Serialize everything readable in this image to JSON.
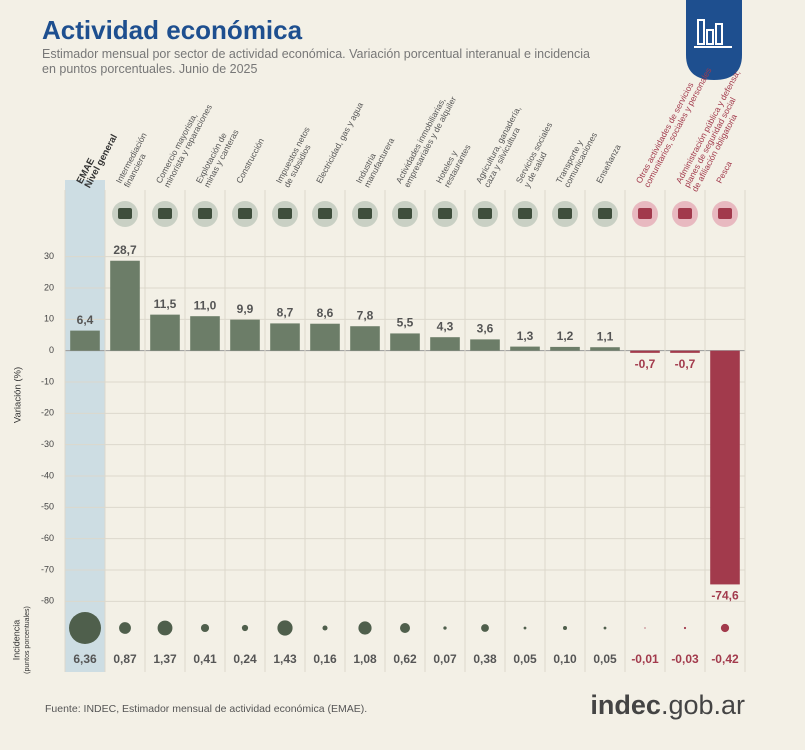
{
  "title": "Actividad económica",
  "subtitle": "Estimador mensual por sector de actividad económica. Variación porcentual interanual e incidencia\nen puntos porcentuales. Junio de 2025",
  "source": "Fuente: INDEC, Estimador mensual de actividad económica (EMAE).",
  "logo": {
    "name": "indec",
    "domain": ".gob.ar"
  },
  "chart_data": {
    "type": "bar",
    "categories": [
      "EMAE\nNivel general",
      "Intermediación\nfinanciera",
      "Comercio mayorista,\nminorista y reparaciones",
      "Explotación de\nminas y canteras",
      "Construcción",
      "Impuestos netos\nde subsidios",
      "Electricidad, gas y agua",
      "Industria\nmanufacturera",
      "Actividades inmobiliarias,\nempresariales y de alquiler",
      "Hoteles y\nrestaurantes",
      "Agricultura, ganadería,\ncaza y silvicultura",
      "Servicios sociales\ny de salud",
      "Transporte y\ncomunicaciones",
      "Enseñanza",
      "Otras actividades de servicios\ncomunitarios, sociales y personales",
      "Administración pública y defensa;\nplanes de seguridad social\nde afiliación obligatoria",
      "Pesca"
    ],
    "values": [
      6.4,
      28.7,
      11.5,
      11.0,
      9.9,
      8.7,
      8.6,
      7.8,
      5.5,
      4.3,
      3.6,
      1.3,
      1.2,
      1.1,
      -0.7,
      -0.7,
      -74.6
    ],
    "value_labels": [
      "6,4",
      "28,7",
      "11,5",
      "11,0",
      "9,9",
      "8,7",
      "8,6",
      "7,8",
      "5,5",
      "4,3",
      "3,6",
      "1,3",
      "1,2",
      "1,1",
      "-0,7",
      "-0,7",
      "-74,6"
    ],
    "ylabel": "Variación (%)",
    "ylim": [
      -85,
      35
    ],
    "yticks": [
      30,
      20,
      10,
      0,
      -10,
      -20,
      -30,
      -40,
      -50,
      -60,
      -70,
      -80
    ],
    "color_positive": "#6c7d68",
    "color_negative": "#a23a4c",
    "highlight_color": "#cddde3",
    "incidence_title": "Incidencia",
    "incidence_subtitle": "(puntos porcentuales)",
    "incidence": [
      6.36,
      0.87,
      1.37,
      0.41,
      0.24,
      1.43,
      0.16,
      1.08,
      0.62,
      0.07,
      0.38,
      0.05,
      0.1,
      0.05,
      -0.01,
      -0.03,
      -0.42
    ],
    "incidence_labels": [
      "6,36",
      "0,87",
      "1,37",
      "0,41",
      "0,24",
      "1,43",
      "0,16",
      "1,08",
      "0,62",
      "0,07",
      "0,38",
      "0,05",
      "0,10",
      "0,05",
      "-0,01",
      "-0,03",
      "-0,42"
    ]
  }
}
